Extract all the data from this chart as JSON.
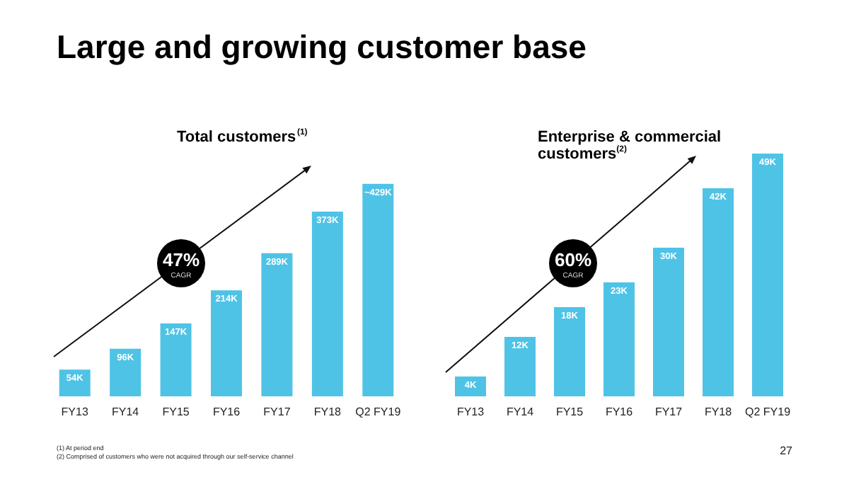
{
  "chart_data": [
    {
      "type": "bar",
      "title": "Large and growing customer base",
      "subtitle": "Total customers$^{(1)}$",
      "categories": [
        "FY13",
        "FY14",
        "FY15",
        "FY16",
        "FY17",
        "FY18",
        "Q2 FY19"
      ],
      "values": [
        54,
        96,
        147,
        214,
        289,
        373,
        429
      ],
      "color": "#4fc3e6",
      "value_labels": [
        "54K",
        "96K",
        "147K",
        "214K",
        "289K",
        "373K",
        "~429K"
      ],
      "annotations": [
        "47%",
        "CAGR"
      ]
    },
    {
      "type": "bar",
      "subtitle": "Enterprise & commercial customers$^{(2)}$",
      "categories": [
        "FY13",
        "FY14",
        "FY15",
        "FY16",
        "FY17",
        "FY18",
        "Q2 FY19"
      ],
      "values": [
        4,
        12,
        18,
        23,
        30,
        42,
        49
      ],
      "color": "#4fc3e6",
      "value_labels": [
        "4K",
        "12K",
        "18K",
        "23K",
        "30K",
        "42K",
        "49K"
      ],
      "annotations": [
        "60%",
        "CAGR",
        "(1) At period end",
        "(2) Comprised of customers who were not acquired through our self-service channel",
        "27"
      ]
    }
  ]
}
